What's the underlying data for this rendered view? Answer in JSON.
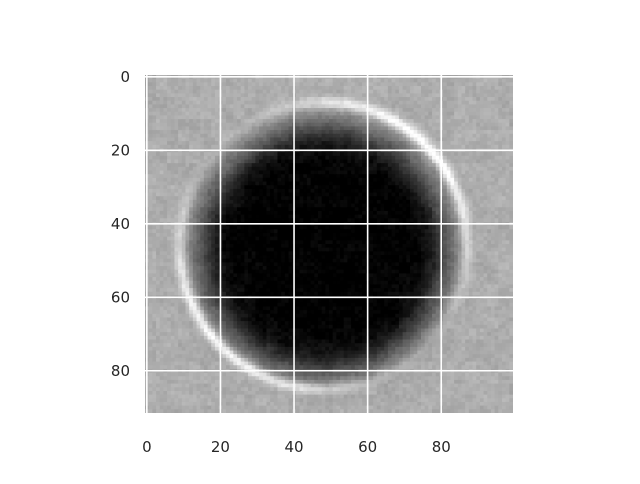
{
  "chart_data": {
    "type": "heatmap",
    "title": "",
    "xlabel": "",
    "ylabel": "",
    "colormap": "gray",
    "grid": true,
    "grid_color": "#ffffff",
    "image_size": [
      100,
      92
    ],
    "xlim": [
      -0.5,
      99.5
    ],
    "ylim": [
      91.5,
      -0.5
    ],
    "x_ticks": [
      0,
      20,
      40,
      60,
      80
    ],
    "y_ticks": [
      0,
      20,
      40,
      60,
      80
    ],
    "x_tick_labels": [
      "0",
      "20",
      "40",
      "60",
      "80"
    ],
    "y_tick_labels": [
      "0",
      "20",
      "40",
      "60",
      "80"
    ],
    "background_level": 0.68,
    "dark_disc": {
      "center": [
        48,
        47
      ],
      "radius": 33,
      "level": 0.0
    },
    "bright_ring": {
      "center": [
        48,
        46
      ],
      "radius": 39,
      "level": 0.93
    }
  }
}
